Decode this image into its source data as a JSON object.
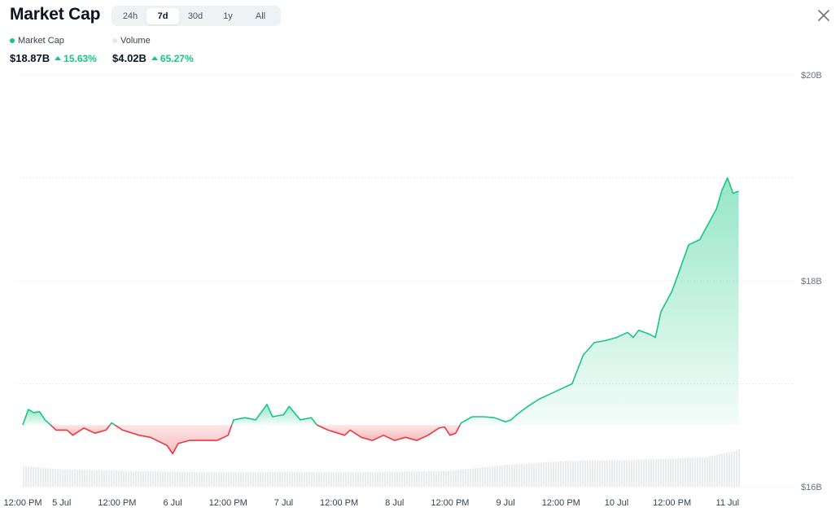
{
  "header": {
    "title": "Market Cap",
    "tabs": [
      {
        "label": "24h",
        "active": false
      },
      {
        "label": "7d",
        "active": true
      },
      {
        "label": "30d",
        "active": false
      },
      {
        "label": "1y",
        "active": false
      },
      {
        "label": "All",
        "active": false
      }
    ],
    "close_icon": "close-icon"
  },
  "legend": {
    "market_cap": {
      "label": "Market Cap",
      "value": "$18.87B",
      "change": "15.63%",
      "color": "#16c784"
    },
    "volume": {
      "label": "Volume",
      "value": "$4.02B",
      "change": "65.27%",
      "color": "#e5e7eb"
    }
  },
  "colors": {
    "up": "#16c784",
    "down": "#ea3943",
    "volume": "#e9ebef"
  },
  "chart_data": {
    "type": "area",
    "baseline": 16.6,
    "ylim": [
      16,
      20
    ],
    "y_ticks": [
      "$20B",
      "$18B",
      "$16B"
    ],
    "y_tick_values": [
      20,
      18,
      16
    ],
    "x_tick_labels": [
      "12:00 PM",
      "5 Jul",
      "12:00 PM",
      "6 Jul",
      "12:00 PM",
      "7 Jul",
      "12:00 PM",
      "8 Jul",
      "12:00 PM",
      "9 Jul",
      "12:00 PM",
      "10 Jul",
      "12:00 PM",
      "11 Jul"
    ],
    "x_tick_times": [
      0.15,
      0.5,
      1.0,
      1.5,
      2.0,
      2.5,
      3.0,
      3.5,
      4.0,
      4.5,
      5.0,
      5.5,
      6.0,
      6.5
    ],
    "x_range": [
      0.15,
      7.0
    ],
    "series": [
      {
        "name": "Market Cap",
        "points": [
          [
            0.15,
            16.6
          ],
          [
            0.2,
            16.75
          ],
          [
            0.25,
            16.72
          ],
          [
            0.3,
            16.73
          ],
          [
            0.35,
            16.65
          ],
          [
            0.45,
            16.55
          ],
          [
            0.55,
            16.55
          ],
          [
            0.6,
            16.5
          ],
          [
            0.7,
            16.57
          ],
          [
            0.8,
            16.52
          ],
          [
            0.9,
            16.55
          ],
          [
            0.95,
            16.62
          ],
          [
            1.05,
            16.55
          ],
          [
            1.2,
            16.5
          ],
          [
            1.3,
            16.48
          ],
          [
            1.45,
            16.4
          ],
          [
            1.5,
            16.32
          ],
          [
            1.55,
            16.42
          ],
          [
            1.65,
            16.45
          ],
          [
            1.75,
            16.45
          ],
          [
            1.85,
            16.45
          ],
          [
            1.9,
            16.45
          ],
          [
            2.0,
            16.5
          ],
          [
            2.05,
            16.65
          ],
          [
            2.15,
            16.67
          ],
          [
            2.25,
            16.65
          ],
          [
            2.35,
            16.8
          ],
          [
            2.4,
            16.68
          ],
          [
            2.5,
            16.7
          ],
          [
            2.55,
            16.78
          ],
          [
            2.65,
            16.65
          ],
          [
            2.75,
            16.67
          ],
          [
            2.8,
            16.6
          ],
          [
            2.9,
            16.55
          ],
          [
            3.05,
            16.5
          ],
          [
            3.1,
            16.55
          ],
          [
            3.2,
            16.48
          ],
          [
            3.3,
            16.45
          ],
          [
            3.4,
            16.5
          ],
          [
            3.5,
            16.45
          ],
          [
            3.6,
            16.48
          ],
          [
            3.7,
            16.45
          ],
          [
            3.8,
            16.5
          ],
          [
            3.9,
            16.57
          ],
          [
            3.95,
            16.58
          ],
          [
            4.0,
            16.5
          ],
          [
            4.05,
            16.52
          ],
          [
            4.1,
            16.62
          ],
          [
            4.2,
            16.68
          ],
          [
            4.3,
            16.68
          ],
          [
            4.4,
            16.67
          ],
          [
            4.5,
            16.63
          ],
          [
            4.55,
            16.65
          ],
          [
            4.6,
            16.7
          ],
          [
            4.7,
            16.78
          ],
          [
            4.8,
            16.85
          ],
          [
            4.9,
            16.9
          ],
          [
            5.0,
            16.95
          ],
          [
            5.1,
            17.0
          ],
          [
            5.2,
            17.28
          ],
          [
            5.3,
            17.4
          ],
          [
            5.4,
            17.42
          ],
          [
            5.5,
            17.45
          ],
          [
            5.6,
            17.5
          ],
          [
            5.65,
            17.45
          ],
          [
            5.7,
            17.52
          ],
          [
            5.8,
            17.48
          ],
          [
            5.85,
            17.45
          ],
          [
            5.9,
            17.7
          ],
          [
            6.0,
            17.9
          ],
          [
            6.05,
            18.05
          ],
          [
            6.15,
            18.35
          ],
          [
            6.25,
            18.4
          ],
          [
            6.35,
            18.6
          ],
          [
            6.4,
            18.7
          ],
          [
            6.45,
            18.88
          ],
          [
            6.5,
            19.0
          ],
          [
            6.55,
            18.85
          ],
          [
            6.6,
            18.87
          ]
        ]
      },
      {
        "name": "Volume",
        "points": [
          [
            0.15,
            0.45
          ],
          [
            0.5,
            0.38
          ],
          [
            1.0,
            0.35
          ],
          [
            1.5,
            0.33
          ],
          [
            2.0,
            0.32
          ],
          [
            2.5,
            0.33
          ],
          [
            3.0,
            0.32
          ],
          [
            3.5,
            0.33
          ],
          [
            4.0,
            0.35
          ],
          [
            4.5,
            0.48
          ],
          [
            5.0,
            0.56
          ],
          [
            5.5,
            0.58
          ],
          [
            6.0,
            0.62
          ],
          [
            6.3,
            0.65
          ],
          [
            6.5,
            0.75
          ],
          [
            6.6,
            0.82
          ]
        ]
      }
    ]
  }
}
